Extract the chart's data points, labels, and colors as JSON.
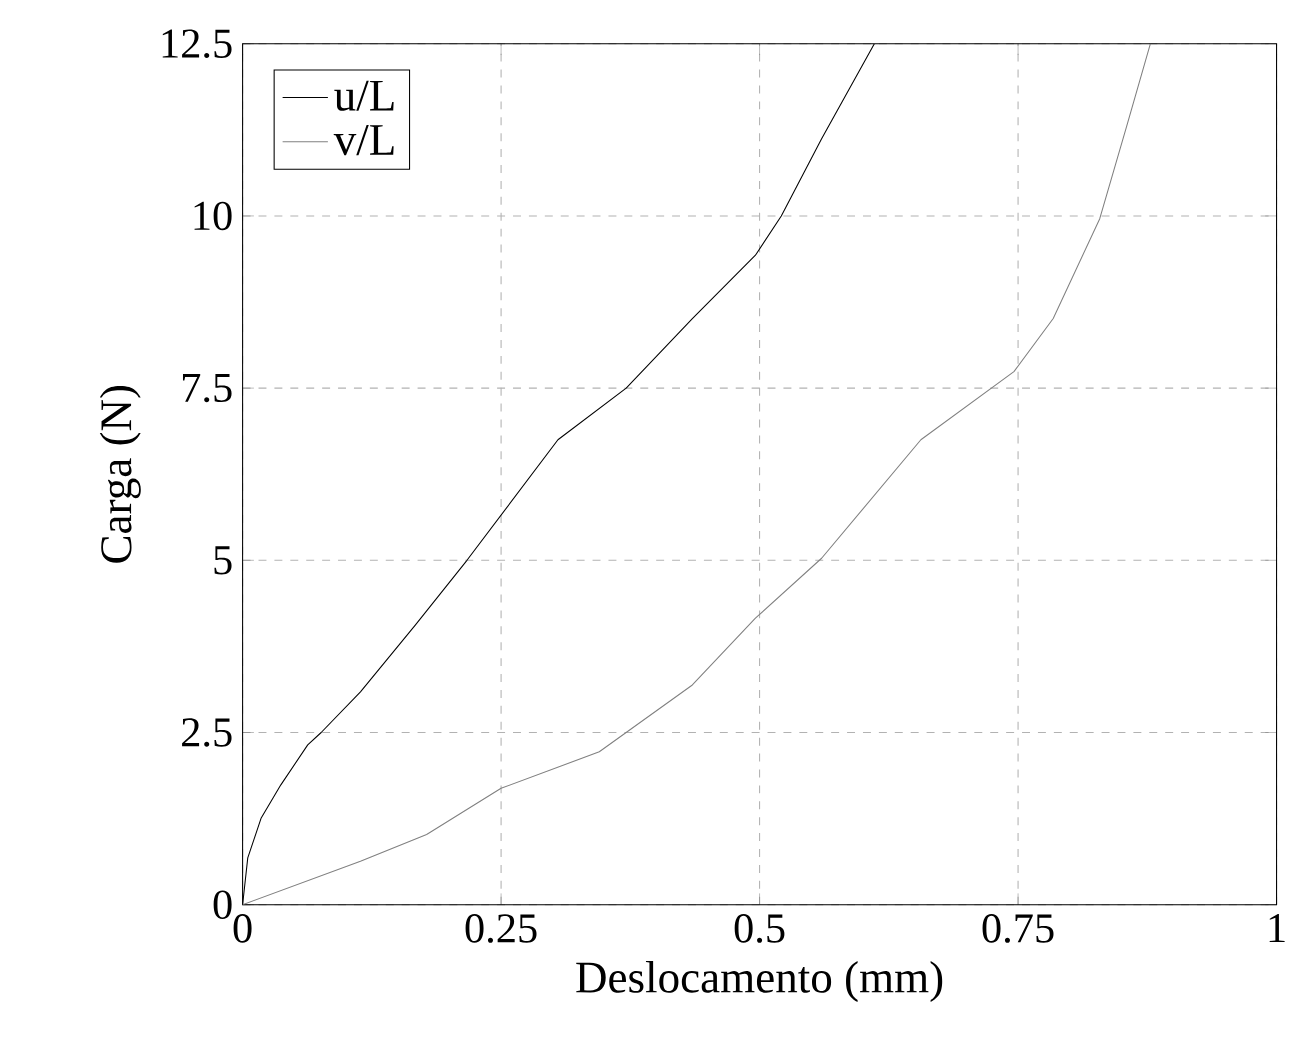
{
  "chart_data": {
    "type": "line",
    "xlabel": "Deslocamento (mm)",
    "ylabel": "Carga (N)",
    "xlim": [
      0,
      1
    ],
    "ylim": [
      0,
      12.5
    ],
    "xticks": [
      0,
      0.25,
      0.5,
      0.75,
      1
    ],
    "yticks": [
      0,
      2.5,
      5,
      7.5,
      10,
      12.5
    ],
    "grid": true,
    "legend": "top left",
    "line_style": "solid",
    "marker": "none",
    "series": [
      {
        "name": "u/L",
        "color": "#000000",
        "x": [
          0,
          0.005,
          0.018,
          0.037,
          0.063,
          0.076,
          0.114,
          0.167,
          0.217,
          0.305,
          0.371,
          0.435,
          0.496,
          0.521,
          0.56,
          0.611
        ],
        "values": [
          0,
          0.68,
          1.26,
          1.74,
          2.32,
          2.5,
          3.09,
          4.06,
          5,
          6.75,
          7.5,
          8.51,
          9.43,
          10,
          11.12,
          12.5
        ]
      },
      {
        "name": "v/L",
        "color": "#808080",
        "x": [
          0,
          0.114,
          0.178,
          0.25,
          0.345,
          0.435,
          0.496,
          0.56,
          0.656,
          0.746,
          0.784,
          0.829,
          0.855,
          0.878
        ],
        "values": [
          0,
          0.63,
          1.02,
          1.69,
          2.22,
          3.19,
          4.16,
          5.03,
          6.75,
          7.74,
          8.51,
          9.96,
          11.3,
          12.5
        ]
      }
    ]
  }
}
